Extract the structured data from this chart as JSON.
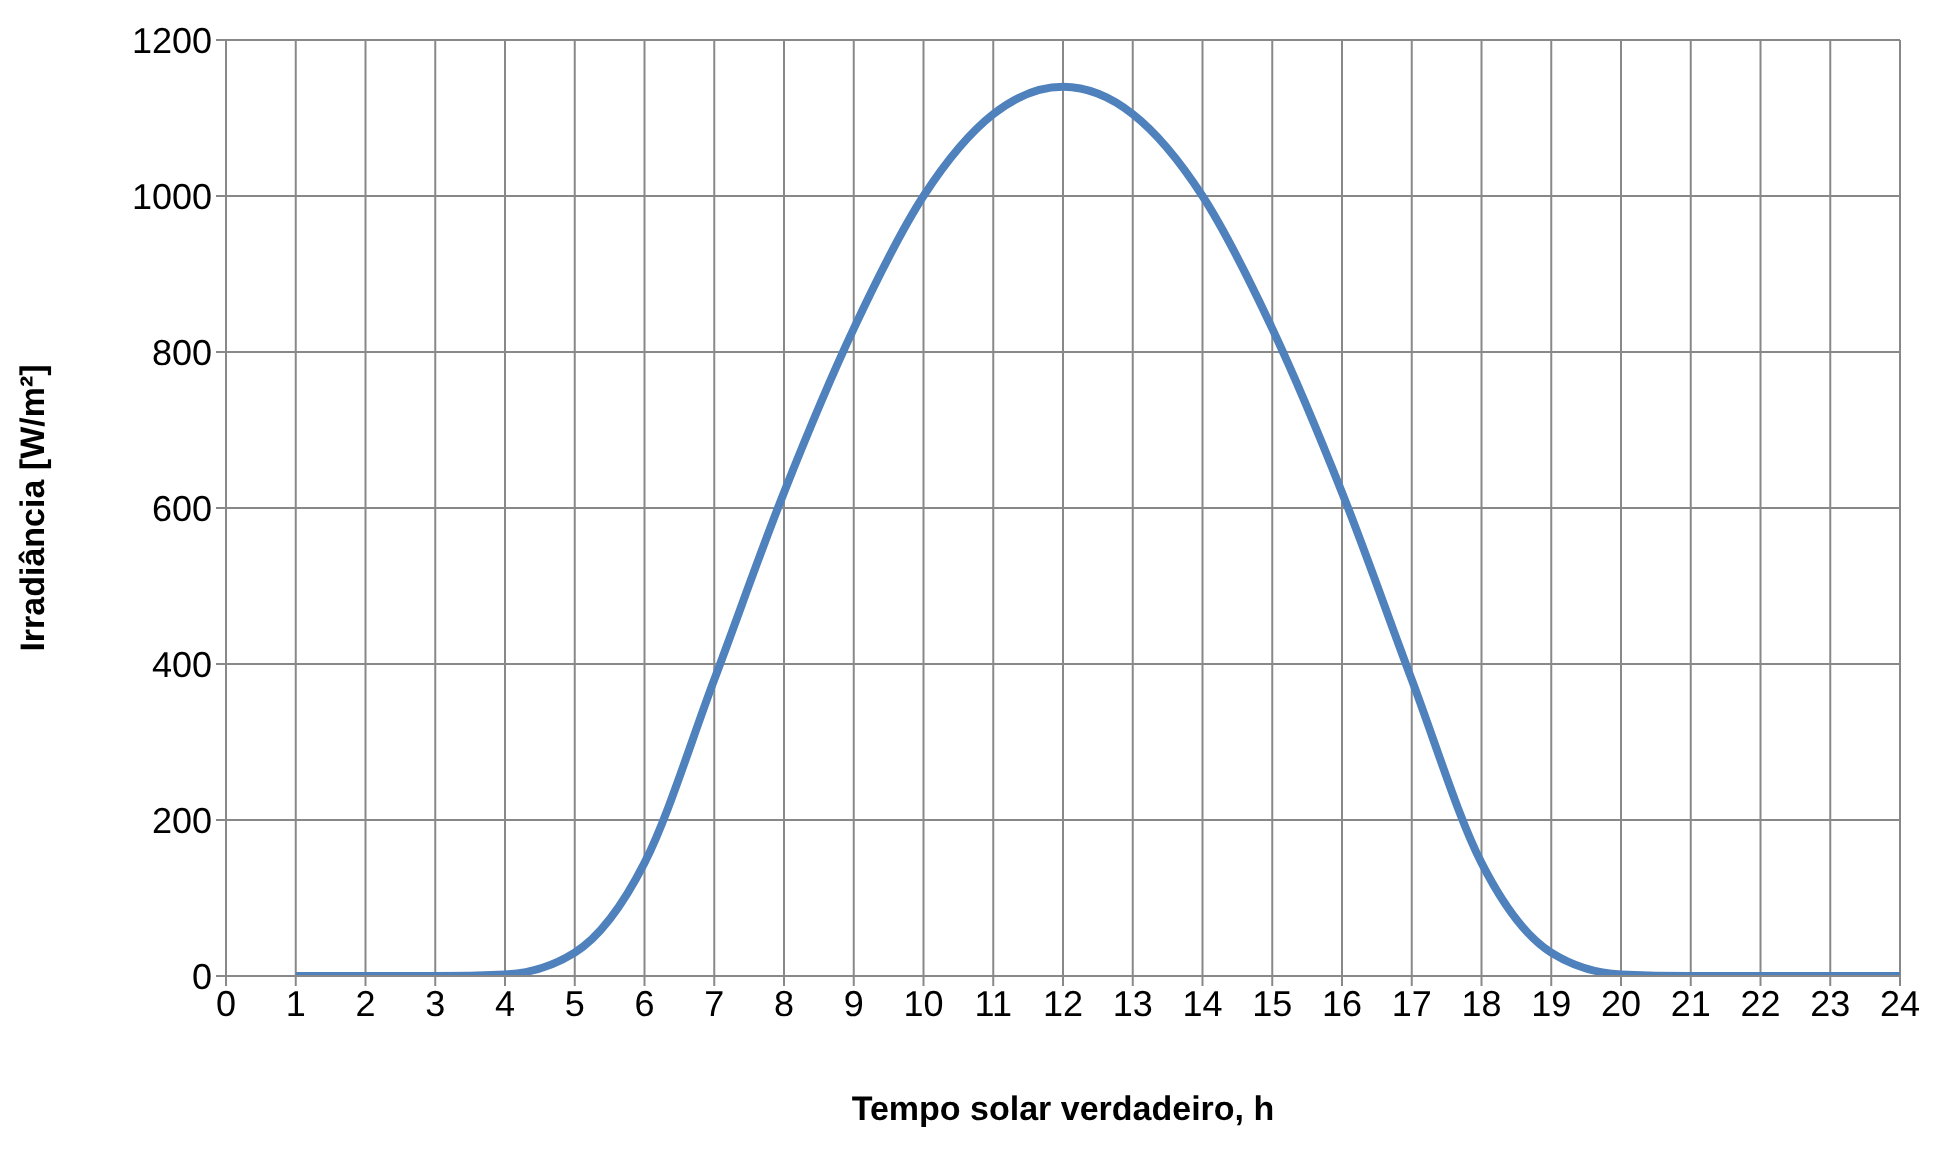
{
  "chart_data": {
    "type": "line",
    "xlabel": "Tempo solar verdadeiro, h",
    "ylabel": "Irradiância [W/m²]",
    "x": [
      1,
      2,
      3,
      4,
      5,
      6,
      7,
      8,
      9,
      10,
      11,
      12,
      13,
      14,
      15,
      16,
      17,
      18,
      19,
      20,
      21,
      22,
      23,
      24
    ],
    "series": [
      {
        "color": "#4f81bd",
        "values": [
          0,
          0,
          0,
          2,
          30,
          145,
          380,
          620,
          830,
          1000,
          1105,
          1140,
          1105,
          1000,
          830,
          620,
          380,
          145,
          30,
          2,
          0,
          0,
          0,
          0
        ]
      }
    ],
    "xlim": [
      0,
      24
    ],
    "xticks": [
      0,
      1,
      2,
      3,
      4,
      5,
      6,
      7,
      8,
      9,
      10,
      11,
      12,
      13,
      14,
      15,
      16,
      17,
      18,
      19,
      20,
      21,
      22,
      23,
      24
    ],
    "ylim": [
      0,
      1200
    ],
    "yticks": [
      0,
      200,
      400,
      600,
      800,
      1000,
      1200
    ],
    "grid": true,
    "legend": false,
    "marker": "none",
    "line_style": "solid"
  }
}
